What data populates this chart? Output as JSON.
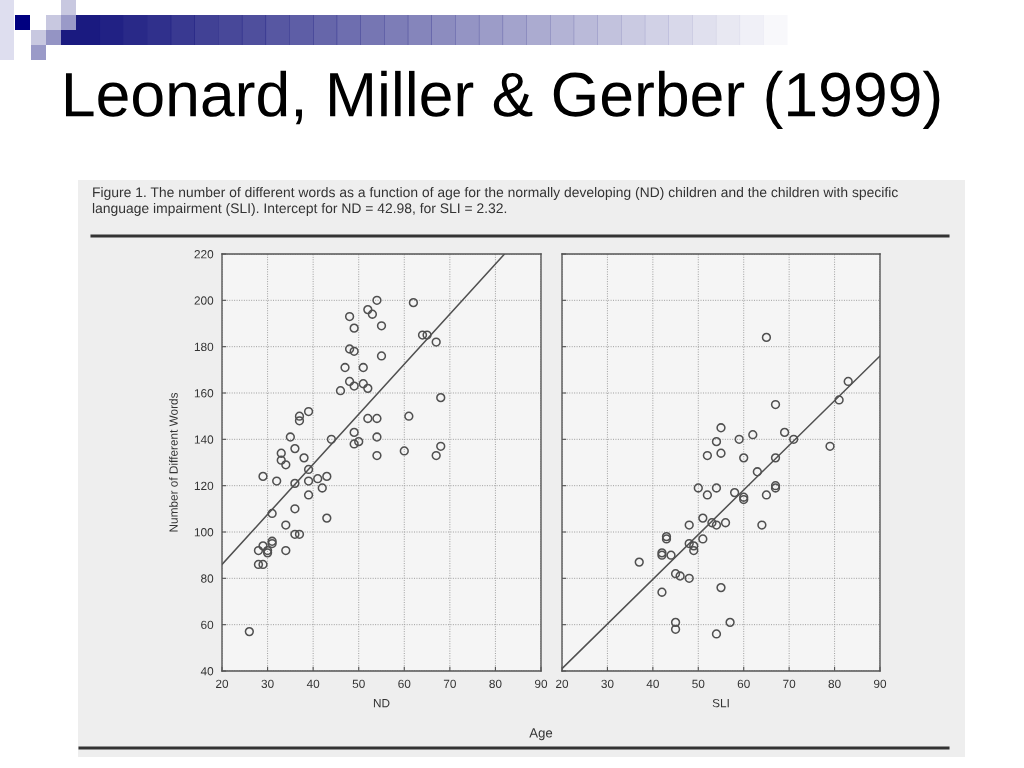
{
  "chart_data": [
    {
      "type": "scatter",
      "title": "Leonard, Miller & Gerber (1999)",
      "subtitle": "Figure 1. The number of different words as a function of age for the normally developing (ND) children and the children with specific\nlanguage impairment (SLI). Intercept for ND = 42.98, for SLI = 2.32.",
      "xlabel": "ND",
      "ylabel": "Number of Different Words",
      "annotations": [
        "Age"
      ],
      "series": [
        {
          "color": "#505050",
          "marker": "circle",
          "x": [
            54,
            62,
            48,
            52,
            53,
            49,
            55,
            64,
            65,
            67,
            48,
            49,
            55,
            47,
            51,
            48,
            49,
            51,
            52,
            46,
            68,
            39,
            37,
            37,
            61,
            52,
            54,
            35,
            44,
            49,
            54,
            49,
            50,
            68,
            36,
            33,
            60,
            54,
            67,
            33,
            34,
            38,
            29,
            32,
            36,
            39,
            39,
            41,
            43,
            42,
            39,
            36,
            31,
            43,
            34,
            36,
            37,
            31,
            31,
            29,
            28,
            30,
            30,
            34,
            28,
            29,
            26
          ],
          "values": [
            200,
            199,
            193,
            196,
            194,
            188,
            189,
            185,
            185,
            182,
            179,
            178,
            176,
            171,
            171,
            165,
            163,
            164,
            162,
            161,
            158,
            152,
            150,
            148,
            150,
            149,
            149,
            141,
            140,
            143,
            141,
            138,
            139,
            137,
            136,
            134,
            135,
            133,
            133,
            131,
            129,
            132,
            124,
            122,
            121,
            127,
            122,
            123,
            124,
            119,
            116,
            110,
            108,
            106,
            103,
            99,
            99,
            96,
            95,
            94,
            92,
            92,
            91,
            92,
            86,
            86,
            57
          ]
        },
        {
          "type": "line",
          "color": "#505050",
          "x": [
            20,
            82
          ],
          "values": [
            86,
            220
          ]
        }
      ],
      "xlim": [
        20,
        90
      ],
      "xticks": [
        20,
        30,
        40,
        50,
        60,
        70,
        80,
        90
      ],
      "ylim": [
        40,
        220
      ],
      "yticks": [
        40,
        60,
        80,
        100,
        120,
        140,
        160,
        180,
        200,
        220
      ],
      "grid": true
    },
    {
      "type": "scatter",
      "xlabel": "SLI",
      "series": [
        {
          "color": "#505050",
          "marker": "circle",
          "x": [
            65,
            83,
            81,
            67,
            55,
            54,
            59,
            62,
            69,
            71,
            79,
            52,
            55,
            60,
            67,
            63,
            50,
            54,
            52,
            58,
            60,
            60,
            65,
            67,
            67,
            51,
            53,
            54,
            56,
            48,
            64,
            43,
            43,
            51,
            48,
            49,
            49,
            42,
            42,
            44,
            37,
            45,
            46,
            48,
            55,
            42,
            45,
            45,
            57,
            54
          ],
          "values": [
            184,
            165,
            157,
            155,
            145,
            139,
            140,
            142,
            143,
            140,
            137,
            133,
            134,
            132,
            132,
            126,
            119,
            119,
            116,
            117,
            115,
            114,
            116,
            120,
            119,
            106,
            104,
            103,
            104,
            103,
            103,
            98,
            97,
            97,
            95,
            94,
            92,
            91,
            90,
            90,
            87,
            82,
            81,
            80,
            76,
            74,
            61,
            58,
            61,
            56
          ]
        },
        {
          "type": "line",
          "color": "#505050",
          "x": [
            20,
            90
          ],
          "values": [
            41,
            176
          ]
        }
      ],
      "xlim": [
        20,
        90
      ],
      "xticks": [
        20,
        30,
        40,
        50,
        60,
        70,
        80,
        90
      ],
      "ylim": [
        40,
        220
      ],
      "yticks": [
        40,
        60,
        80,
        100,
        120,
        140,
        160,
        180,
        200,
        220
      ],
      "grid": true,
      "tick_labels": "x"
    }
  ]
}
